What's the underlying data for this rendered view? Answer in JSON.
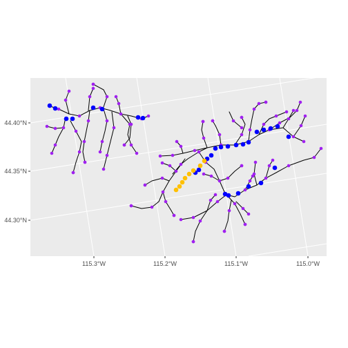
{
  "map": {
    "type": "map",
    "panel_color": "#ebebeb",
    "grid_color": "#ffffff",
    "river_color": "#000000",
    "x_ticks": [
      "115.3°W",
      "115.2°W",
      "115.1°W",
      "115.0°W"
    ],
    "y_ticks": [
      "44.40°N",
      "44.35°N",
      "44.30°N"
    ],
    "legend": "none",
    "point_categories": [
      {
        "color": "#a020f0",
        "size": "small"
      },
      {
        "color": "#0000ff",
        "size": "large"
      },
      {
        "color": "#ffc000",
        "size": "large"
      }
    ]
  }
}
